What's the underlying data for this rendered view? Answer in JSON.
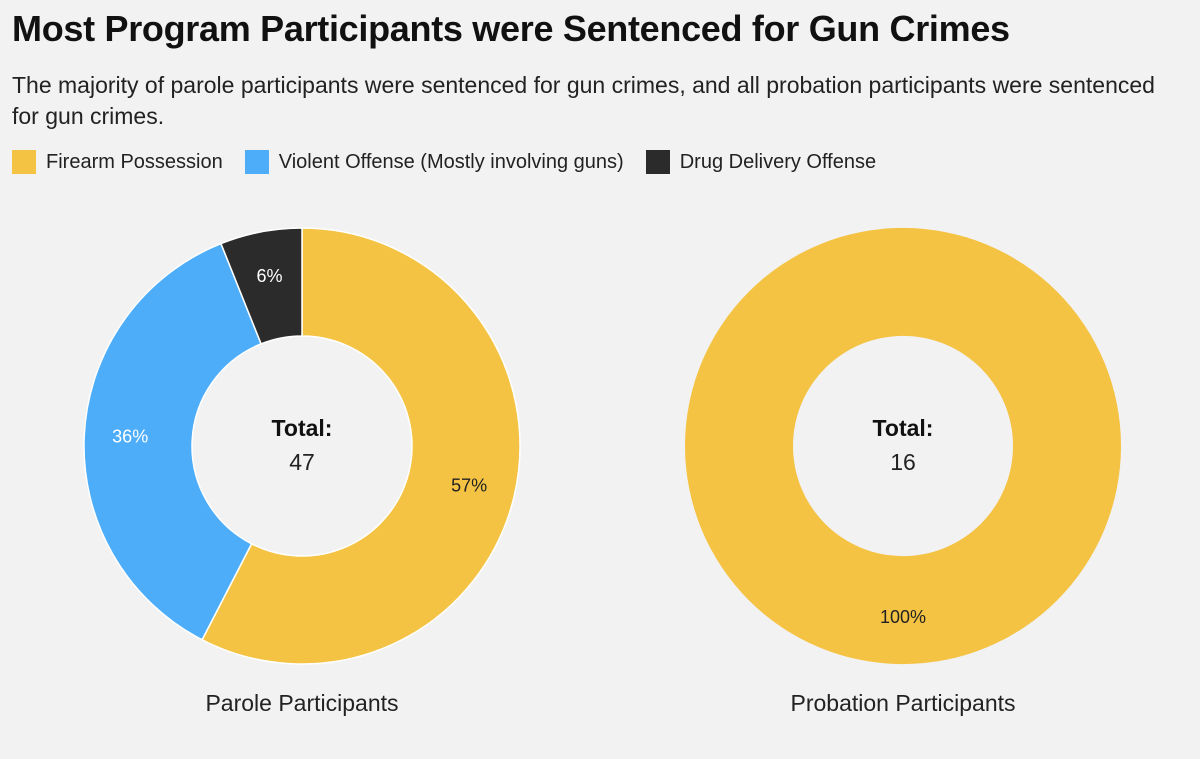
{
  "title": "Most Program Participants were Sentenced for Gun Crimes",
  "subtitle": "The majority of parole participants were sentenced for gun crimes, and all probation participants were sentenced for gun crimes.",
  "legend": [
    {
      "label": "Firearm Possession",
      "color": "#f5c343"
    },
    {
      "label": "Violent Offense (Mostly involving guns)",
      "color": "#4eadf9"
    },
    {
      "label": "Drug Delivery Offense",
      "color": "#2b2b2b"
    }
  ],
  "chart_data": [
    {
      "type": "pie",
      "variant": "donut",
      "caption": "Parole Participants",
      "total_label": "Total:",
      "total_value": "47",
      "slices": [
        {
          "name": "Firearm Possession",
          "value": 57,
          "label": "57%",
          "color": "#f5c343",
          "label_color": "#222222"
        },
        {
          "name": "Violent Offense (Mostly involving guns)",
          "value": 36,
          "label": "36%",
          "color": "#4eadf9",
          "label_color": "#ffffff"
        },
        {
          "name": "Drug Delivery Offense",
          "value": 6,
          "label": "6%",
          "color": "#2b2b2b",
          "label_color": "#ffffff"
        }
      ]
    },
    {
      "type": "pie",
      "variant": "donut",
      "caption": "Probation Participants",
      "total_label": "Total:",
      "total_value": "16",
      "slices": [
        {
          "name": "Firearm Possession",
          "value": 100,
          "label": "100%",
          "color": "#f5c343",
          "label_color": "#222222"
        }
      ]
    }
  ]
}
